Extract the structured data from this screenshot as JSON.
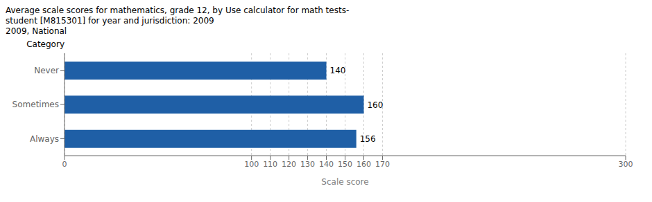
{
  "chart_data": {
    "type": "bar",
    "title": [
      "Average scale scores for mathematics, grade 12, by Use calculator for math tests-",
      "student [M815301] for year and jurisdiction: 2009"
    ],
    "subtitle": "2009, National",
    "orientation": "horizontal",
    "categories": [
      "Never",
      "Sometimes",
      "Always"
    ],
    "values": [
      140,
      160,
      156
    ],
    "color": "#1F5FA6",
    "xlabel": "Scale score",
    "ylabel": "Category",
    "xlim": [
      0,
      300
    ],
    "xticks": [
      0,
      100,
      110,
      120,
      130,
      140,
      150,
      160,
      170,
      300
    ],
    "grid": true,
    "data_labels": true
  }
}
